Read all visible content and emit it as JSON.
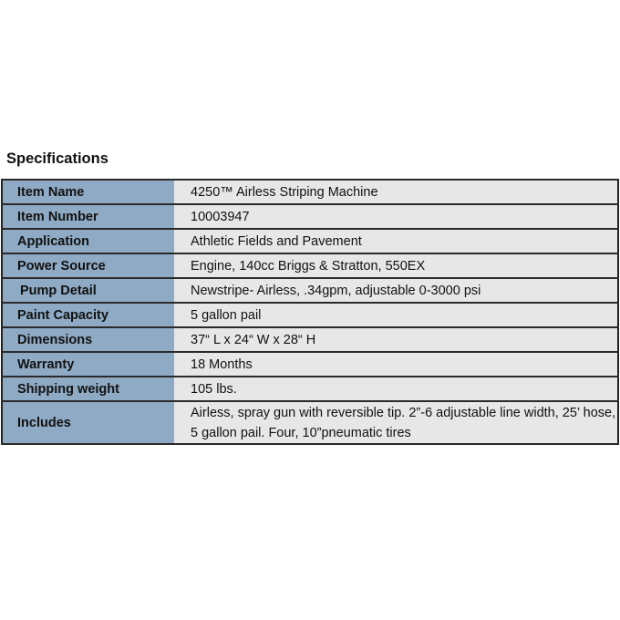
{
  "title": "Specifications",
  "colors": {
    "label_bg": "#8faac4",
    "value_bg": "#e7e7e7",
    "border": "#2a2a2a"
  },
  "rows": [
    {
      "label": "Item Name",
      "value": "4250™  Airless Striping Machine"
    },
    {
      "label": "Item Number",
      "value": "10003947"
    },
    {
      "label": "Application",
      "value": "Athletic Fields and Pavement"
    },
    {
      "label": "Power Source",
      "value": "Engine, 140cc Briggs & Stratton, 550EX"
    },
    {
      "label": "Pump Detail",
      "value": "Newstripe- Airless, .34gpm, adjustable 0-3000 psi"
    },
    {
      "label": "Paint Capacity",
      "value": "5 gallon pail"
    },
    {
      "label": "Dimensions",
      "value": "37“ L x 24“ W x 28“ H"
    },
    {
      "label": "Warranty",
      "value": "18 Months"
    },
    {
      "label": "Shipping weight",
      "value": "105 lbs."
    },
    {
      "label": "Includes",
      "value": "Airless, spray gun with reversible tip. 2”-6 adjustable line width, 25’ hose, 5 gallon pail. Four, 10”pneumatic tires"
    }
  ]
}
